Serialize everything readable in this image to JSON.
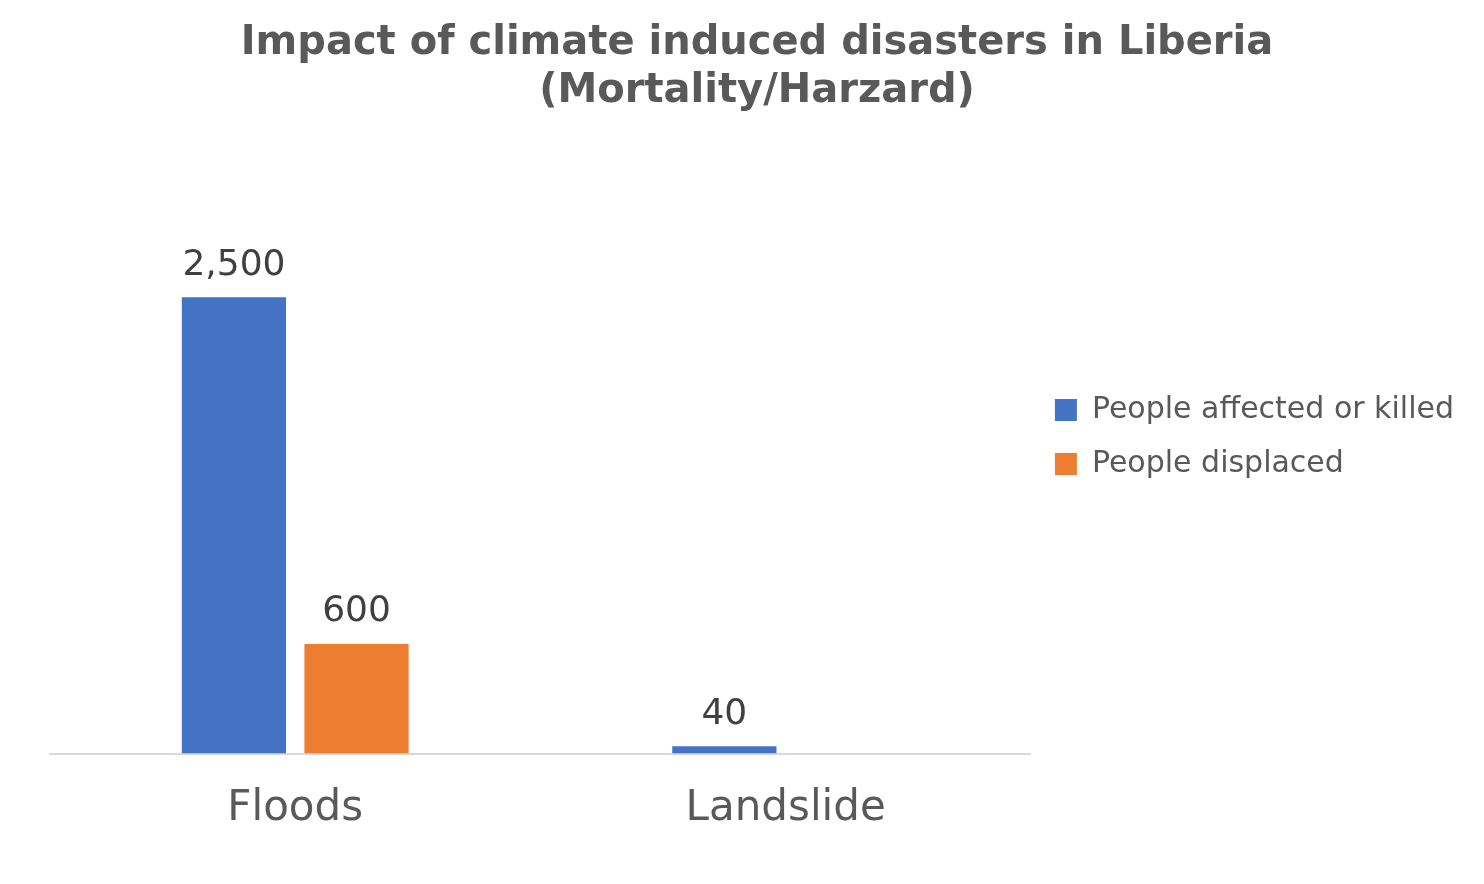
{
  "chart_data": {
    "type": "bar",
    "title": [
      "Impact of climate induced disasters in Liberia",
      "(Mortality/Harzard)"
    ],
    "categories": [
      "Floods",
      "Landslide"
    ],
    "series": [
      {
        "name": "People affected or killed",
        "color": "#4472c4",
        "values": [
          2500,
          40
        ],
        "value_labels": [
          "2,500",
          "40"
        ]
      },
      {
        "name": "People displaced",
        "color": "#ed7d31",
        "values": [
          600,
          null
        ],
        "value_labels": [
          "600",
          null
        ]
      }
    ],
    "grid": false,
    "legend": "right"
  }
}
